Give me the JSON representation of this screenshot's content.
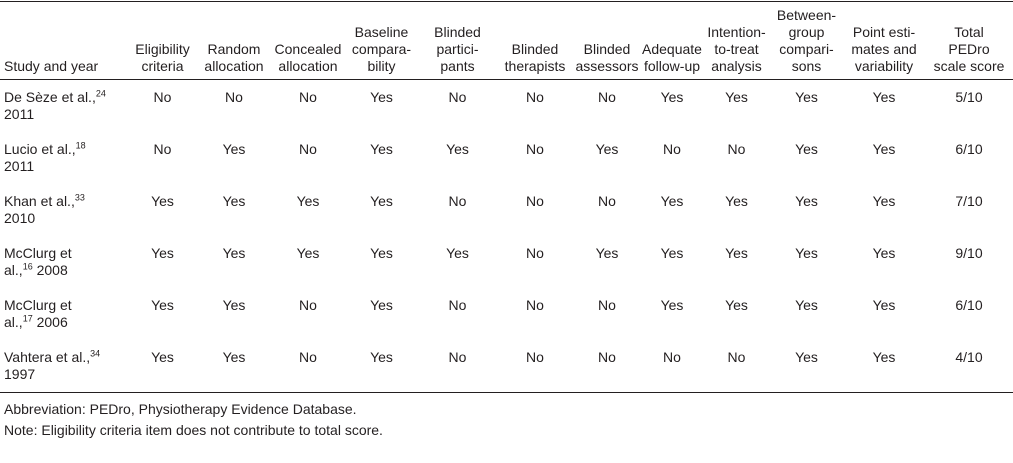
{
  "headers": [
    "Study and year",
    "Eligibility criteria",
    "Random allocation",
    "Concealed allocation",
    "Baseline compara-bility",
    "Blinded partici-pants",
    "Blinded therapists",
    "Blinded assessors",
    "Adequate follow-up",
    "Intention-to-treat analysis",
    "Between-group compari-sons",
    "Point esti-mates and variability",
    "Total PEDro scale score"
  ],
  "header_lines": [
    [
      "Study and year"
    ],
    [
      "Eligibility",
      "criteria"
    ],
    [
      "Random",
      "allocation"
    ],
    [
      "Concealed",
      "allocation"
    ],
    [
      "Baseline",
      "compara-",
      "bility"
    ],
    [
      "Blinded",
      "partici-",
      "pants"
    ],
    [
      "Blinded",
      "therapists"
    ],
    [
      "Blinded",
      "assessors"
    ],
    [
      "Adequate",
      "follow-up"
    ],
    [
      "Intention-",
      "to-treat",
      "analysis"
    ],
    [
      "Between-",
      "group",
      "compari-",
      "sons"
    ],
    [
      "Point esti-",
      "mates and",
      "variability"
    ],
    [
      "Total",
      "PEDro",
      "scale score"
    ]
  ],
  "rows": [
    {
      "study_line1": "De Sèze et al.,",
      "ref": "24",
      "study_line2": "2011",
      "values": [
        "No",
        "No",
        "No",
        "Yes",
        "No",
        "No",
        "No",
        "Yes",
        "Yes",
        "Yes",
        "Yes",
        "5/10"
      ]
    },
    {
      "study_line1": "Lucio et al.,",
      "ref": "18",
      "study_line2": "2011",
      "values": [
        "No",
        "Yes",
        "No",
        "Yes",
        "Yes",
        "No",
        "Yes",
        "No",
        "No",
        "Yes",
        "Yes",
        "6/10"
      ]
    },
    {
      "study_line1": "Khan et al.,",
      "ref": "33",
      "study_line2": "2010",
      "values": [
        "Yes",
        "Yes",
        "Yes",
        "Yes",
        "No",
        "No",
        "No",
        "Yes",
        "Yes",
        "Yes",
        "Yes",
        "7/10"
      ]
    },
    {
      "study_line1": "McClurg et",
      "ref": "16",
      "study_line2_prefix": "al.,",
      "study_line2": "2008",
      "values": [
        "Yes",
        "Yes",
        "Yes",
        "Yes",
        "Yes",
        "No",
        "Yes",
        "Yes",
        "Yes",
        "Yes",
        "Yes",
        "9/10"
      ]
    },
    {
      "study_line1": "McClurg et",
      "ref": "17",
      "study_line2_prefix": "al.,",
      "study_line2": "2006",
      "values": [
        "Yes",
        "Yes",
        "No",
        "Yes",
        "No",
        "No",
        "No",
        "Yes",
        "Yes",
        "Yes",
        "Yes",
        "6/10"
      ]
    },
    {
      "study_line1": "Vahtera et al.,",
      "ref": "34",
      "study_line2": "1997",
      "values": [
        "Yes",
        "Yes",
        "No",
        "Yes",
        "No",
        "No",
        "No",
        "No",
        "No",
        "Yes",
        "Yes",
        "4/10"
      ]
    }
  ],
  "footnotes": [
    "Abbreviation: PEDro, Physiotherapy Evidence Database.",
    "Note: Eligibility criteria item does not contribute to total score."
  ]
}
